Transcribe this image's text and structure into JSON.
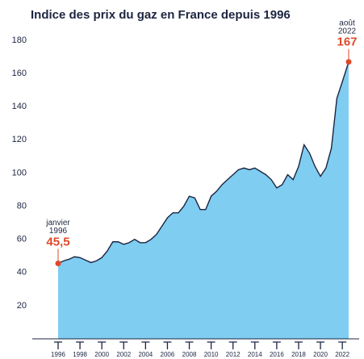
{
  "chart_data": {
    "type": "area",
    "title": "Indice des prix du gaz en France depuis 1996",
    "x": [
      1996.0,
      1996.5,
      1997.0,
      1997.5,
      1998.0,
      1998.5,
      1999.0,
      1999.5,
      2000.0,
      2000.5,
      2001.0,
      2001.5,
      2002.0,
      2002.5,
      2003.0,
      2003.5,
      2004.0,
      2004.5,
      2005.0,
      2005.5,
      2006.0,
      2006.5,
      2007.0,
      2007.5,
      2008.0,
      2008.5,
      2009.0,
      2009.5,
      2010.0,
      2010.5,
      2011.0,
      2011.5,
      2012.0,
      2012.5,
      2013.0,
      2013.5,
      2014.0,
      2014.5,
      2015.0,
      2015.5,
      2016.0,
      2016.5,
      2017.0,
      2017.5,
      2018.0,
      2018.5,
      2019.0,
      2019.5,
      2020.0,
      2020.5,
      2021.0,
      2021.5,
      2022.0,
      2022.58
    ],
    "values": [
      45.5,
      47,
      48,
      49.5,
      49,
      47.5,
      46,
      47,
      49,
      53,
      58.5,
      58.5,
      57,
      58,
      60,
      58,
      58,
      60,
      63,
      68,
      73,
      76,
      76,
      80,
      86,
      85,
      78,
      78,
      86,
      89,
      93,
      96,
      99,
      102,
      103,
      102,
      103,
      101,
      99,
      96,
      91,
      93,
      99,
      96,
      104,
      117,
      112,
      104,
      98,
      103,
      115,
      145,
      155,
      167
    ],
    "value_labels": [
      "45,5",
      null,
      null,
      null,
      null,
      null,
      null,
      null,
      null,
      null,
      null,
      null,
      null,
      null,
      null,
      null,
      null,
      null,
      null,
      null,
      null,
      null,
      null,
      null,
      null,
      null,
      null,
      null,
      null,
      null,
      null,
      null,
      null,
      null,
      null,
      null,
      null,
      null,
      null,
      null,
      null,
      null,
      null,
      null,
      null,
      null,
      null,
      null,
      null,
      null,
      null,
      null,
      null,
      "167"
    ],
    "annotations": [
      {
        "month": "janvier",
        "year": "1996"
      },
      {
        "month": "août",
        "year": "2022"
      }
    ],
    "color": "#7fcdf1",
    "line_color": "#1c2541",
    "highlight_color": "#e0482a",
    "xlim": [
      1996.0,
      2022.58
    ],
    "ylim": [
      0,
      180
    ],
    "xticks": [
      1996,
      1998,
      2000,
      2002,
      2004,
      2006,
      2008,
      2010,
      2012,
      2014,
      2016,
      2018,
      2020,
      2022
    ],
    "yticks": [
      20,
      40,
      60,
      80,
      100,
      120,
      140,
      160,
      180
    ],
    "grid": false
  }
}
